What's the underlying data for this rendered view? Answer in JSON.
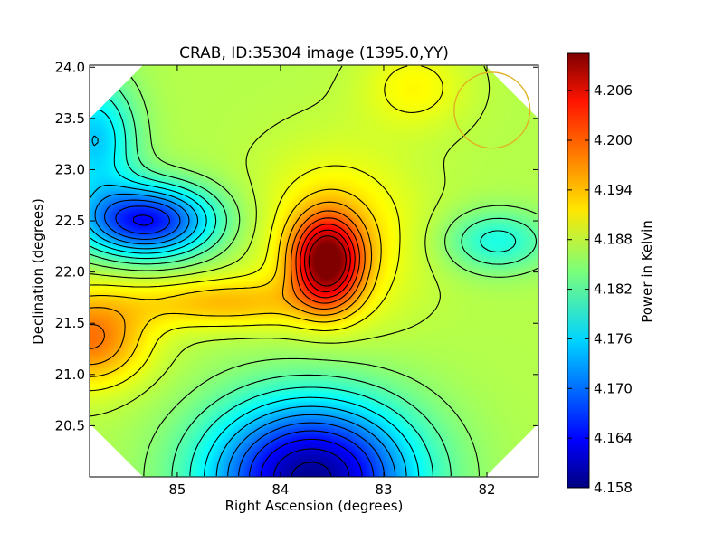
{
  "chart_data": {
    "type": "heatmap",
    "title": "CRAB, ID:35304 image (1395.0,YY)",
    "xlabel": "Right Ascension (degrees)",
    "ylabel": "Declination (degrees)",
    "colorbar_label": "Power in Kelvin",
    "xlim": [
      85.85,
      81.5
    ],
    "ylim": [
      20.0,
      24.02
    ],
    "x_ticks": [
      {
        "value": 85,
        "label": "85"
      },
      {
        "value": 84,
        "label": "84"
      },
      {
        "value": 83,
        "label": "83"
      },
      {
        "value": 82,
        "label": "82"
      }
    ],
    "y_ticks": [
      {
        "value": 20.5,
        "label": "20.5"
      },
      {
        "value": 21.0,
        "label": "21.0"
      },
      {
        "value": 21.5,
        "label": "21.5"
      },
      {
        "value": 22.0,
        "label": "22.0"
      },
      {
        "value": 22.5,
        "label": "22.5"
      },
      {
        "value": 23.0,
        "label": "23.0"
      },
      {
        "value": 23.5,
        "label": "23.5"
      },
      {
        "value": 24.0,
        "label": "24.0"
      }
    ],
    "colorbar_range": [
      4.158,
      4.2105
    ],
    "colorbar_ticks": [
      {
        "value": 4.158,
        "label": "4.158"
      },
      {
        "value": 4.164,
        "label": "4.164"
      },
      {
        "value": 4.17,
        "label": "4.170"
      },
      {
        "value": 4.176,
        "label": "4.176"
      },
      {
        "value": 4.182,
        "label": "4.182"
      },
      {
        "value": 4.188,
        "label": "4.188"
      },
      {
        "value": 4.194,
        "label": "4.194"
      },
      {
        "value": 4.2,
        "label": "4.200"
      },
      {
        "value": 4.206,
        "label": "4.206"
      }
    ],
    "colormap": "jet",
    "features": [
      {
        "kind": "peak",
        "ra": 83.55,
        "dec": 22.1,
        "value": 4.209
      },
      {
        "kind": "minimum",
        "ra": 83.7,
        "dec": 20.05,
        "value": 4.158
      },
      {
        "kind": "minimum",
        "ra": 85.3,
        "dec": 22.5,
        "value": 4.166
      },
      {
        "kind": "local-maximum",
        "ra": 85.8,
        "dec": 21.35,
        "value": 4.198
      },
      {
        "kind": "local-minimum",
        "ra": 81.9,
        "dec": 22.3,
        "value": 4.179
      }
    ],
    "beam_circle": {
      "ra": 81.95,
      "dec": 23.58,
      "radius_deg": 0.37,
      "color": "#e0b020"
    },
    "contour_color": "#000000"
  }
}
